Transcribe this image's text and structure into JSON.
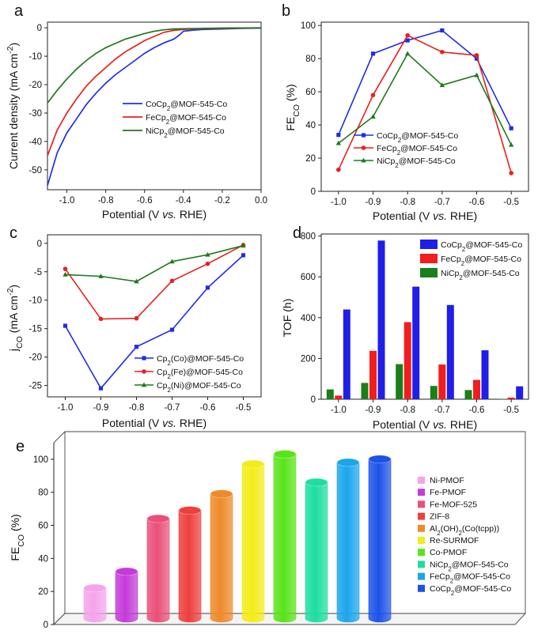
{
  "chart_data": [
    {
      "panel": "a",
      "type": "line",
      "xlabel": "Potential (V vs. RHE)",
      "ylabel": "Current density (mA cm⁻²)",
      "xlim": [
        -1.1,
        0.0
      ],
      "ylim": [
        -57,
        2
      ],
      "xticks": [
        "-1.0",
        "-0.8",
        "-0.6",
        "-0.4",
        "-0.2",
        "0.0"
      ],
      "yticks": [
        "0",
        "-10",
        "-20",
        "-30",
        "-40",
        "-50"
      ],
      "legend_position": "center-right",
      "series": [
        {
          "name": "CoCp₂@MOF-545-Co",
          "color": "#1f2de6",
          "x": [
            -1.1,
            -1.05,
            -1.0,
            -0.95,
            -0.9,
            -0.85,
            -0.8,
            -0.75,
            -0.7,
            -0.65,
            -0.6,
            -0.55,
            -0.5,
            -0.45,
            -0.42,
            -0.4,
            -0.35,
            -0.3,
            -0.2,
            -0.1,
            0.0
          ],
          "y": [
            -55.5,
            -44,
            -37,
            -32,
            -27,
            -23,
            -19.5,
            -16.5,
            -14,
            -11.5,
            -9,
            -7,
            -5.3,
            -4,
            -2.5,
            -1.2,
            -0.8,
            -0.6,
            -0.4,
            -0.2,
            -0.1
          ]
        },
        {
          "name": "FeCp₂@MOF-545-Co",
          "color": "#e8201c",
          "x": [
            -1.1,
            -1.05,
            -1.0,
            -0.95,
            -0.9,
            -0.85,
            -0.8,
            -0.75,
            -0.7,
            -0.65,
            -0.6,
            -0.55,
            -0.5,
            -0.45,
            -0.4,
            -0.35,
            -0.3,
            -0.2,
            -0.1,
            0.0
          ],
          "y": [
            -45,
            -36,
            -30,
            -25,
            -20.5,
            -17,
            -14,
            -11,
            -8.5,
            -6.5,
            -4.5,
            -3,
            -1.6,
            -0.9,
            -0.6,
            -0.4,
            -0.3,
            -0.2,
            -0.1,
            0
          ]
        },
        {
          "name": "NiCp₂@MOF-545-Co",
          "color": "#1f7a1a",
          "x": [
            -1.1,
            -1.05,
            -1.0,
            -0.95,
            -0.9,
            -0.85,
            -0.8,
            -0.75,
            -0.7,
            -0.65,
            -0.6,
            -0.55,
            -0.5,
            -0.45,
            -0.4,
            -0.3,
            -0.2,
            -0.1,
            0.0
          ],
          "y": [
            -26.5,
            -22,
            -18,
            -14.5,
            -11.5,
            -9,
            -7,
            -5.5,
            -4,
            -3,
            -2,
            -1.2,
            -0.7,
            -0.4,
            -0.3,
            -0.2,
            -0.1,
            -0.05,
            0
          ]
        }
      ]
    },
    {
      "panel": "b",
      "type": "line",
      "xlabel": "Potential (V vs. RHE)",
      "ylabel": "FE_CO (%)",
      "xlim": [
        -1.05,
        -0.45
      ],
      "ylim": [
        0,
        102
      ],
      "xticks": [
        "-1.0",
        "-0.9",
        "-0.8",
        "-0.7",
        "-0.6",
        "-0.5"
      ],
      "yticks": [
        "0",
        "20",
        "40",
        "60",
        "80",
        "100"
      ],
      "legend_position": "bottom-center",
      "series": [
        {
          "name": "CoCp₂@MOF-545-Co",
          "color": "#1f2de6",
          "marker": "square",
          "x": [
            -1.0,
            -0.9,
            -0.8,
            -0.7,
            -0.6,
            -0.5
          ],
          "y": [
            34,
            83,
            91,
            97,
            80,
            38
          ]
        },
        {
          "name": "FeCp₂@MOF-545-Co",
          "color": "#e8201c",
          "marker": "circle",
          "x": [
            -1.0,
            -0.9,
            -0.8,
            -0.7,
            -0.6,
            -0.5
          ],
          "y": [
            13,
            58,
            94,
            84,
            82,
            11
          ]
        },
        {
          "name": "NiCp₂@MOF-545-Co",
          "color": "#1f7a1a",
          "marker": "triangle",
          "x": [
            -1.0,
            -0.9,
            -0.8,
            -0.7,
            -0.6,
            -0.5
          ],
          "y": [
            29,
            45,
            83,
            64,
            70,
            28
          ]
        }
      ]
    },
    {
      "panel": "c",
      "type": "line",
      "xlabel": "Potential (V vs. RHE)",
      "ylabel": "j_CO (mA cm⁻²)",
      "xlim": [
        -1.05,
        -0.45
      ],
      "ylim": [
        -27,
        1.5
      ],
      "xticks": [
        "-1.0",
        "-0.9",
        "-0.8",
        "-0.7",
        "-0.6",
        "-0.5"
      ],
      "yticks": [
        "0",
        "-5",
        "-10",
        "-15",
        "-20",
        "-25"
      ],
      "legend_position": "bottom-right",
      "series": [
        {
          "name": "Cp₂(Co)@MOF-545-Co",
          "color": "#1f2de6",
          "marker": "square",
          "x": [
            -1.0,
            -0.9,
            -0.8,
            -0.7,
            -0.6,
            -0.5
          ],
          "y": [
            -14.5,
            -25.5,
            -18.2,
            -15.2,
            -7.8,
            -2.1
          ]
        },
        {
          "name": "Cp₂(Fe)@MOF-545-Co",
          "color": "#e8201c",
          "marker": "circle",
          "x": [
            -1.0,
            -0.9,
            -0.8,
            -0.7,
            -0.6,
            -0.5
          ],
          "y": [
            -4.5,
            -13.3,
            -13.2,
            -6.6,
            -3.6,
            -0.3
          ]
        },
        {
          "name": "Cp₂(Ni)@MOF-545-Co",
          "color": "#1f7a1a",
          "marker": "triangle",
          "x": [
            -1.0,
            -0.9,
            -0.8,
            -0.7,
            -0.6,
            -0.5
          ],
          "y": [
            -5.5,
            -5.8,
            -6.7,
            -3.2,
            -2.0,
            -0.4
          ]
        }
      ]
    },
    {
      "panel": "d",
      "type": "bar",
      "xlabel": "Potential (V vs. RHE)",
      "ylabel": "TOF (h)",
      "xlim": [
        -1.05,
        -0.45
      ],
      "ylim": [
        0,
        810
      ],
      "categories": [
        "-1.0",
        "-0.9",
        "-0.8",
        "-0.7",
        "-0.6",
        "-0.5"
      ],
      "xticks": [
        "-1.0",
        "-0.9",
        "-0.8",
        "-0.7",
        "-0.6",
        "-0.5"
      ],
      "yticks": [
        "0",
        "200",
        "400",
        "600",
        "800"
      ],
      "legend_position": "top-right",
      "series": [
        {
          "name": "NiCp₂@MOF-545-Co",
          "color": "#1a7f1a",
          "values": [
            48,
            80,
            172,
            65,
            45,
            2
          ]
        },
        {
          "name": "FeCp₂@MOF-545-Co",
          "color": "#f21d1d",
          "values": [
            18,
            237,
            378,
            170,
            95,
            8
          ]
        },
        {
          "name": "CoCp₂@MOF-545-Co",
          "color": "#1f1fe8",
          "values": [
            440,
            778,
            552,
            462,
            240,
            63
          ]
        }
      ],
      "legend_order": [
        "CoCp₂@MOF-545-Co",
        "FeCp₂@MOF-545-Co",
        "NiCp₂@MOF-545-Co"
      ]
    },
    {
      "panel": "e",
      "type": "bar",
      "style": "3d-cylinders",
      "ylabel": "FE_CO (%)",
      "ylim": [
        0,
        110
      ],
      "yticks": [
        "0",
        "20",
        "40",
        "60",
        "80",
        "100"
      ],
      "legend_position": "right",
      "categories": [
        "Ni-PMOF",
        "Fe-PMOF",
        "Fe-MOF-525",
        "ZIF-8",
        "Al₂(OH)₂(Co(tcpp))",
        "Re-SURMOF",
        "Co-PMOF",
        "NiCp₂@MOF-545-Co",
        "FeCp₂@MOF-545-Co",
        "CoCp₂@MOF-545-Co"
      ],
      "values": [
        23,
        33,
        65,
        70,
        80,
        98,
        104,
        87,
        99,
        101
      ],
      "colors": [
        "#f5a3ec",
        "#c43bd9",
        "#ea4f7a",
        "#ee3f3c",
        "#ee8a2a",
        "#f3ec18",
        "#58e419",
        "#1dde9e",
        "#1ba6ec",
        "#1d52e8"
      ]
    }
  ],
  "panel_labels": [
    "a",
    "b",
    "c",
    "d",
    "e"
  ]
}
